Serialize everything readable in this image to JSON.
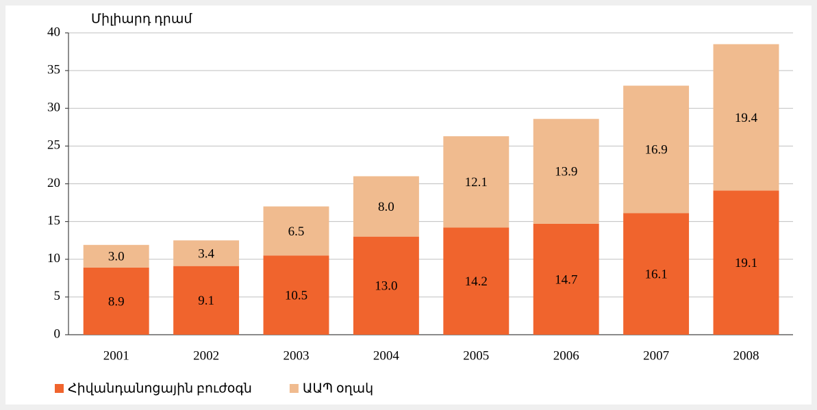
{
  "chart_data": {
    "type": "stacked_bar",
    "y_axis_label": "Միլիարդ դրամ",
    "categories": [
      "2001",
      "2002",
      "2003",
      "2004",
      "2005",
      "2006",
      "2007",
      "2008"
    ],
    "series": [
      {
        "name": "Հիվանդանոցային բուժօգն",
        "color": "#f0642d",
        "values": [
          8.9,
          9.1,
          10.5,
          13.0,
          14.2,
          14.7,
          16.1,
          19.1
        ],
        "value_labels": [
          "8.9",
          "9.1",
          "10.5",
          "13.0",
          "14.2",
          "14.7",
          "16.1",
          "19.1"
        ]
      },
      {
        "name": "ԱԱՊ օղակ",
        "color": "#f0bb8f",
        "values": [
          3.0,
          3.4,
          6.5,
          8.0,
          12.1,
          13.9,
          16.9,
          19.4
        ],
        "value_labels": [
          "3.0",
          "3.4",
          "6.5",
          "8.0",
          "12.1",
          "13.9",
          "16.9",
          "19.4"
        ]
      }
    ],
    "ylim": [
      0,
      40
    ],
    "yticks": [
      0,
      5,
      10,
      15,
      20,
      25,
      30,
      35,
      40
    ],
    "grid": true,
    "legend": "bottom"
  }
}
